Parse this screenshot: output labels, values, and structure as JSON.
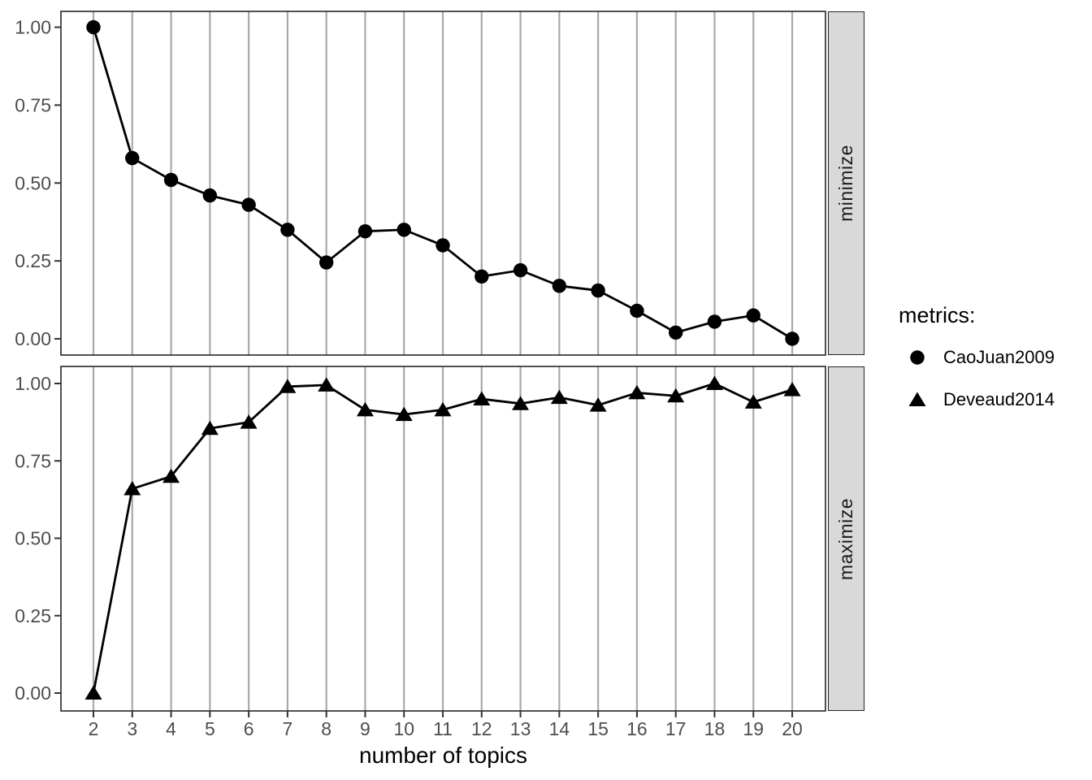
{
  "chart_data": {
    "type": "line",
    "title": "",
    "xlabel": "number of topics",
    "ylabel": "",
    "x": [
      2,
      3,
      4,
      5,
      6,
      7,
      8,
      9,
      10,
      11,
      12,
      13,
      14,
      15,
      16,
      17,
      18,
      19,
      20
    ],
    "xtick_labels": [
      "2",
      "3",
      "4",
      "5",
      "6",
      "7",
      "8",
      "9",
      "10",
      "11",
      "12",
      "13",
      "14",
      "15",
      "16",
      "17",
      "18",
      "19",
      "20"
    ],
    "ytick_labels": [
      "0.00",
      "0.25",
      "0.50",
      "0.75",
      "1.00"
    ],
    "ylim": [
      0,
      1
    ],
    "grid": "vertical-major-only",
    "legend": {
      "title": "metrics:",
      "position": "right"
    },
    "facets": [
      {
        "label": "minimize",
        "series": "CaoJuan2009"
      },
      {
        "label": "maximize",
        "series": "Deveaud2014"
      }
    ],
    "series": [
      {
        "name": "CaoJuan2009",
        "marker": "circle",
        "facet": "minimize",
        "values": [
          1.0,
          0.58,
          0.51,
          0.46,
          0.43,
          0.35,
          0.245,
          0.345,
          0.35,
          0.3,
          0.2,
          0.22,
          0.17,
          0.155,
          0.09,
          0.02,
          0.055,
          0.075,
          0.0
        ]
      },
      {
        "name": "Deveaud2014",
        "marker": "triangle",
        "facet": "maximize",
        "values": [
          0.0,
          0.66,
          0.7,
          0.855,
          0.875,
          0.99,
          0.995,
          0.915,
          0.9,
          0.915,
          0.95,
          0.935,
          0.955,
          0.93,
          0.97,
          0.96,
          1.0,
          0.94,
          0.98
        ]
      }
    ],
    "colors": {
      "foreground": "#000000",
      "tick_label": "#4D4D4D",
      "grid": "#A9A9A9",
      "strip_fill": "#D9D9D9",
      "panel_border": "#262626",
      "background": "#FFFFFF"
    }
  }
}
